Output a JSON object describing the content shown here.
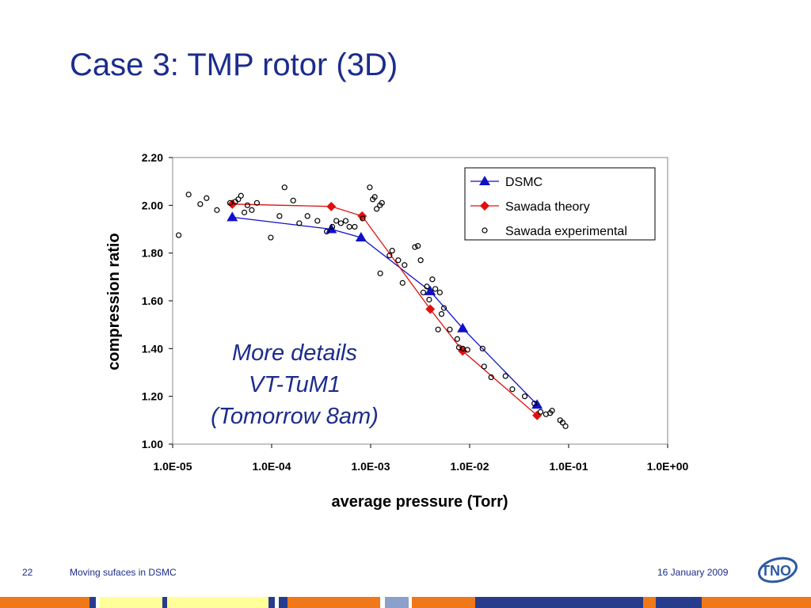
{
  "slide": {
    "title": "Case 3: TMP rotor (3D)",
    "note_lines": [
      "More details",
      "VT-TuM1",
      "(Tomorrow 8am)"
    ],
    "footer": {
      "page_number": "22",
      "caption": "Moving sufaces in DSMC",
      "date": "16 January 2009",
      "logo_text": "TNO"
    },
    "colors": {
      "title": "#1c2c8c",
      "dsmc": "#1010c8",
      "sawada_theory": "#e01010",
      "bar_orange": "#f07818",
      "bar_yellow": "#ffff99",
      "bar_navy": "#283c8c",
      "bar_lightblue": "#8ca0cc"
    }
  },
  "chart_data": {
    "type": "scatter",
    "xlabel": "average pressure (Torr)",
    "ylabel": "compression ratio",
    "x_scale": "log",
    "xlim": [
      1e-05,
      1.0
    ],
    "ylim": [
      1.0,
      2.2
    ],
    "x_tick_labels": [
      "1.0E-05",
      "1.0E-04",
      "1.0E-03",
      "1.0E-02",
      "1.0E-01",
      "1.0E+00"
    ],
    "y_tick_labels": [
      "1.00",
      "1.20",
      "1.40",
      "1.60",
      "1.80",
      "2.00",
      "2.20"
    ],
    "legend_position": "top-right",
    "grid": false,
    "series": [
      {
        "name": "DSMC",
        "marker": "triangle",
        "color": "#1010c8",
        "points": [
          [
            4e-05,
            1.95
          ],
          [
            0.0004,
            1.9
          ],
          [
            0.0008,
            1.865
          ],
          [
            0.004,
            1.64
          ],
          [
            0.0085,
            1.485
          ],
          [
            0.048,
            1.165
          ]
        ]
      },
      {
        "name": "Sawada theory",
        "marker": "diamond",
        "color": "#e01010",
        "points": [
          [
            4e-05,
            2.005
          ],
          [
            0.0004,
            1.995
          ],
          [
            0.00082,
            1.955
          ],
          [
            0.004,
            1.565
          ],
          [
            0.0085,
            1.39
          ],
          [
            0.048,
            1.12
          ]
        ]
      },
      {
        "name": "Sawada experimental",
        "marker": "open-circle",
        "color": "#000000",
        "points": [
          [
            1.15e-05,
            1.875
          ],
          [
            1.45e-05,
            2.045
          ],
          [
            1.9e-05,
            2.005
          ],
          [
            2.2e-05,
            2.03
          ],
          [
            2.8e-05,
            1.98
          ],
          [
            3.8e-05,
            2.01
          ],
          [
            4.3e-05,
            2.015
          ],
          [
            4.6e-05,
            2.025
          ],
          [
            4.9e-05,
            2.04
          ],
          [
            5.3e-05,
            1.97
          ],
          [
            5.7e-05,
            2.0
          ],
          [
            6.3e-05,
            1.98
          ],
          [
            7.1e-05,
            2.01
          ],
          [
            9.8e-05,
            1.865
          ],
          [
            0.00012,
            1.955
          ],
          [
            0.000135,
            2.075
          ],
          [
            0.000165,
            2.02
          ],
          [
            0.00019,
            1.925
          ],
          [
            0.00023,
            1.955
          ],
          [
            0.00029,
            1.935
          ],
          [
            0.00036,
            1.89
          ],
          [
            0.00041,
            1.91
          ],
          [
            0.00045,
            1.935
          ],
          [
            0.0005,
            1.925
          ],
          [
            0.00056,
            1.935
          ],
          [
            0.00061,
            1.91
          ],
          [
            0.00069,
            1.91
          ],
          [
            0.00083,
            1.945
          ],
          [
            0.00098,
            2.075
          ],
          [
            0.00105,
            2.025
          ],
          [
            0.0011,
            2.035
          ],
          [
            0.00115,
            1.985
          ],
          [
            0.00124,
            2.0
          ],
          [
            0.0013,
            2.01
          ],
          [
            0.00155,
            1.79
          ],
          [
            0.00165,
            1.81
          ],
          [
            0.00125,
            1.715
          ],
          [
            0.0019,
            1.77
          ],
          [
            0.0022,
            1.75
          ],
          [
            0.0021,
            1.675
          ],
          [
            0.0028,
            1.825
          ],
          [
            0.003,
            1.83
          ],
          [
            0.0032,
            1.77
          ],
          [
            0.0034,
            1.635
          ],
          [
            0.0037,
            1.66
          ],
          [
            0.0039,
            1.605
          ],
          [
            0.0042,
            1.69
          ],
          [
            0.0045,
            1.65
          ],
          [
            0.0048,
            1.48
          ],
          [
            0.005,
            1.635
          ],
          [
            0.0052,
            1.545
          ],
          [
            0.0055,
            1.57
          ],
          [
            0.0063,
            1.48
          ],
          [
            0.0075,
            1.44
          ],
          [
            0.0078,
            1.405
          ],
          [
            0.0085,
            1.4
          ],
          [
            0.0095,
            1.395
          ],
          [
            0.0135,
            1.4
          ],
          [
            0.014,
            1.325
          ],
          [
            0.0165,
            1.28
          ],
          [
            0.023,
            1.285
          ],
          [
            0.027,
            1.23
          ],
          [
            0.036,
            1.2
          ],
          [
            0.045,
            1.17
          ],
          [
            0.052,
            1.135
          ],
          [
            0.059,
            1.125
          ],
          [
            0.065,
            1.13
          ],
          [
            0.068,
            1.14
          ],
          [
            0.082,
            1.1
          ],
          [
            0.087,
            1.09
          ],
          [
            0.093,
            1.075
          ]
        ]
      }
    ]
  }
}
